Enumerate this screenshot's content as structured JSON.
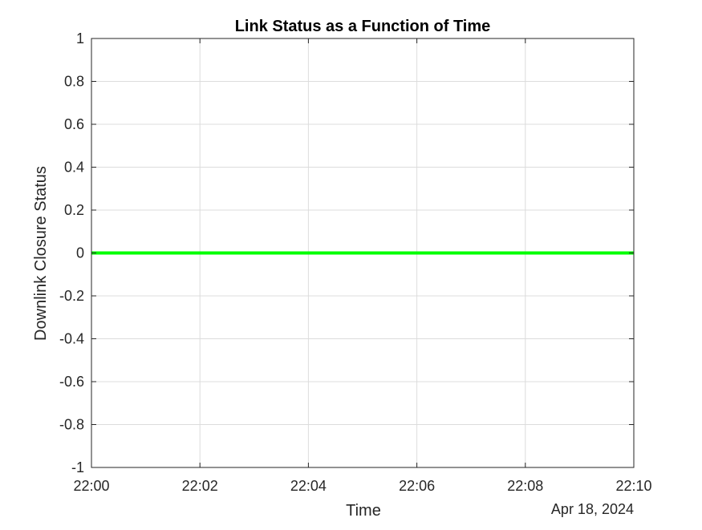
{
  "chart_data": {
    "type": "line",
    "title": "Link Status as a Function of Time",
    "xlabel": "Time",
    "ylabel": "Downlink Closure Status",
    "x_secondary_label": "Apr 18, 2024",
    "x_ticks": [
      "22:00",
      "22:02",
      "22:04",
      "22:06",
      "22:08",
      "22:10"
    ],
    "x_range": [
      "22:00",
      "22:10"
    ],
    "ylim": [
      -1,
      1
    ],
    "y_ticks": [
      "-1",
      "-0.8",
      "-0.6",
      "-0.4",
      "-0.2",
      "0",
      "0.2",
      "0.4",
      "0.6",
      "0.8",
      "1"
    ],
    "y_tick_values": [
      -1,
      -0.8,
      -0.6,
      -0.4,
      -0.2,
      0,
      0.2,
      0.4,
      0.6,
      0.8,
      1
    ],
    "grid": true,
    "series": [
      {
        "color": "#00ff00",
        "x": [
          "22:00",
          "22:10"
        ],
        "values": [
          0,
          0
        ]
      }
    ]
  }
}
